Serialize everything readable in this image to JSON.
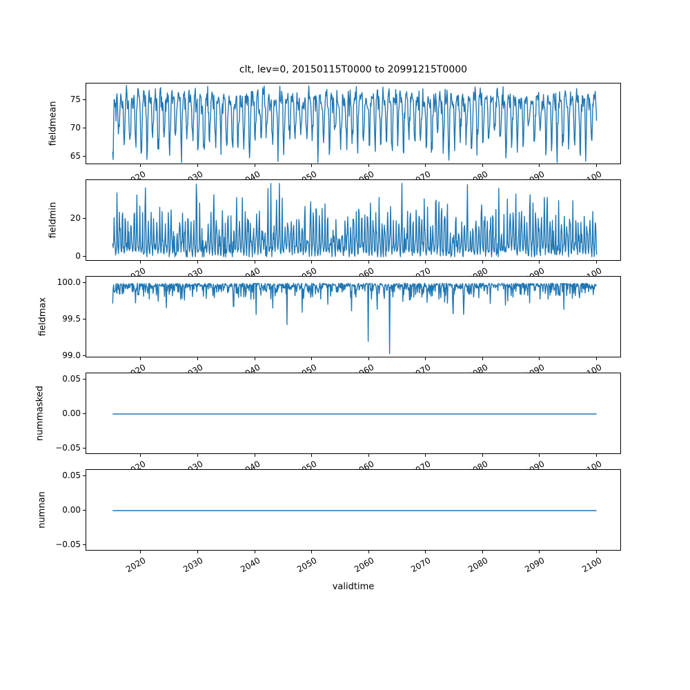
{
  "figure": {
    "title": "clt, lev=0, 20150115T0000 to 20991215T0000",
    "xlabel": "validtime",
    "line_color": "#1f77b4",
    "text_color": "#000000",
    "background": "#ffffff"
  },
  "chart_data": {
    "type": "line",
    "title": "clt, lev=0, 20150115T0000 to 20991215T0000",
    "xlabel": "validtime",
    "x_start_year": 2015.0417,
    "x_step_years": 0.0833333,
    "n_points": 1020,
    "x_end_year": 2099.9583,
    "xlim": [
      2010.52,
      2104.24
    ],
    "x_ticks": [
      2020,
      2030,
      2040,
      2050,
      2060,
      2070,
      2080,
      2090,
      2100
    ],
    "x_tick_rotation_deg": 30,
    "grid": false,
    "legend": null,
    "line_color": "#1f77b4",
    "subplots": [
      {
        "ylabel": "fieldmean",
        "ylim": [
          63.7,
          77.8
        ],
        "yticks": [
          {
            "v": 65,
            "label": "65"
          },
          {
            "v": 70,
            "label": "70"
          },
          {
            "v": 75,
            "label": "75"
          }
        ],
        "series": {
          "kind": "seasonal",
          "seed": 42,
          "climatology": [
            67.3,
            68.2,
            71.2,
            73.9,
            75.2,
            75.6,
            75.1,
            74.6,
            74.8,
            75.1,
            73.3,
            69.4
          ],
          "noise": 1.0,
          "dip_threshold": 70,
          "dip_extra_noise": 1.6,
          "clip": [
            64.0,
            77.6
          ],
          "anomalies": []
        }
      },
      {
        "ylabel": "fieldmin",
        "ylim": [
          -2.1,
          39.9
        ],
        "yticks": [
          {
            "v": 0,
            "label": "0"
          },
          {
            "v": 20,
            "label": "20"
          }
        ],
        "series": {
          "kind": "seasonal_scaled",
          "seed": 7,
          "climatology": [
            2.5,
            5,
            13,
            20,
            11,
            4,
            2,
            6,
            14,
            21,
            10,
            3
          ],
          "noise_base": 0.8,
          "noise_prop": 0.35,
          "clip": [
            0.05,
            38.5
          ],
          "anomalies": [
            [
              2029.75,
              38.2
            ]
          ]
        }
      },
      {
        "ylabel": "fieldmax",
        "ylim": [
          98.98,
          100.08
        ],
        "yticks": [
          {
            "v": 99.0,
            "label": "99.0"
          },
          {
            "v": 99.5,
            "label": "99.5"
          },
          {
            "v": 100.0,
            "label": "100.0"
          }
        ],
        "series": {
          "kind": "baseline_spikes",
          "seed": 13,
          "base": 100.0,
          "hug_noise": 0.03,
          "spike_prob": 0.3,
          "spike_min": 0.04,
          "spike_scale": 0.1,
          "clip": [
            99.0,
            100.0
          ],
          "spikes": [
            [
              2016.3,
              99.85
            ],
            [
              2020.5,
              99.82
            ],
            [
              2024.5,
              99.66
            ],
            [
              2027.2,
              99.79
            ],
            [
              2031.0,
              99.82
            ],
            [
              2036.3,
              99.68
            ],
            [
              2040.2,
              99.57
            ],
            [
              2043.1,
              99.66
            ],
            [
              2045.6,
              99.43
            ],
            [
              2048.3,
              99.6
            ],
            [
              2052.8,
              99.71
            ],
            [
              2057.0,
              99.62
            ],
            [
              2059.9,
              99.2
            ],
            [
              2061.5,
              99.64
            ],
            [
              2063.6,
              99.03
            ],
            [
              2066.0,
              99.75
            ],
            [
              2073.3,
              99.74
            ],
            [
              2074.8,
              99.58
            ],
            [
              2076.6,
              99.57
            ],
            [
              2081.3,
              99.72
            ],
            [
              2084.0,
              99.7
            ],
            [
              2088.2,
              99.73
            ],
            [
              2091.5,
              99.78
            ],
            [
              2094.2,
              99.64
            ],
            [
              2097.0,
              99.8
            ]
          ]
        }
      },
      {
        "ylabel": "nummasked",
        "ylim": [
          -0.0577,
          0.0577
        ],
        "yticks": [
          {
            "v": -0.05,
            "label": "−0.05"
          },
          {
            "v": 0,
            "label": "0.00"
          },
          {
            "v": 0.05,
            "label": "0.05"
          }
        ],
        "series": {
          "kind": "constant",
          "value": 0.0
        }
      },
      {
        "ylabel": "numnan",
        "ylim": [
          -0.0577,
          0.0577
        ],
        "yticks": [
          {
            "v": -0.05,
            "label": "−0.05"
          },
          {
            "v": 0,
            "label": "0.00"
          },
          {
            "v": 0.05,
            "label": "0.05"
          }
        ],
        "series": {
          "kind": "constant",
          "value": 0.0
        }
      }
    ]
  }
}
